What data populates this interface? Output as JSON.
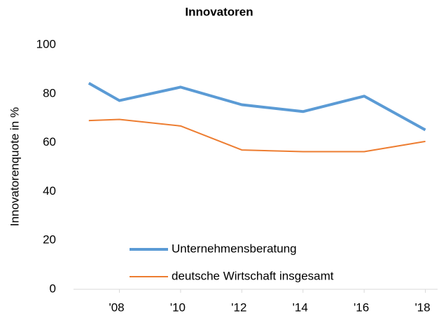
{
  "chart_data": {
    "type": "line",
    "title": "Innovatoren",
    "y_label": "Innovatorenquote in %",
    "x": [
      2007,
      2008,
      2010,
      2012,
      2014,
      2016,
      2018
    ],
    "xlim": [
      2006.5,
      2018.4
    ],
    "xticks": [
      {
        "value": 2008,
        "label": "'08"
      },
      {
        "value": 2010,
        "label": "'10"
      },
      {
        "value": 2012,
        "label": "'12"
      },
      {
        "value": 2014,
        "label": "'14"
      },
      {
        "value": 2016,
        "label": "'16"
      },
      {
        "value": 2018,
        "label": "'18"
      }
    ],
    "ylim": [
      0,
      100
    ],
    "yticks": [
      0,
      20,
      40,
      60,
      80,
      100
    ],
    "grid": false,
    "series": [
      {
        "name": "Unternehmensberatung",
        "color": "#5b9bd5",
        "width": 4,
        "values": [
          84.3,
          77.2,
          82.7,
          75.5,
          72.7,
          79,
          65.2
        ]
      },
      {
        "name": "deutsche Wirtschaft insgesamt",
        "color": "#ed7d31",
        "width": 2,
        "values": [
          69,
          69.5,
          66.8,
          57,
          56.3,
          56.3,
          60.5
        ]
      }
    ]
  }
}
